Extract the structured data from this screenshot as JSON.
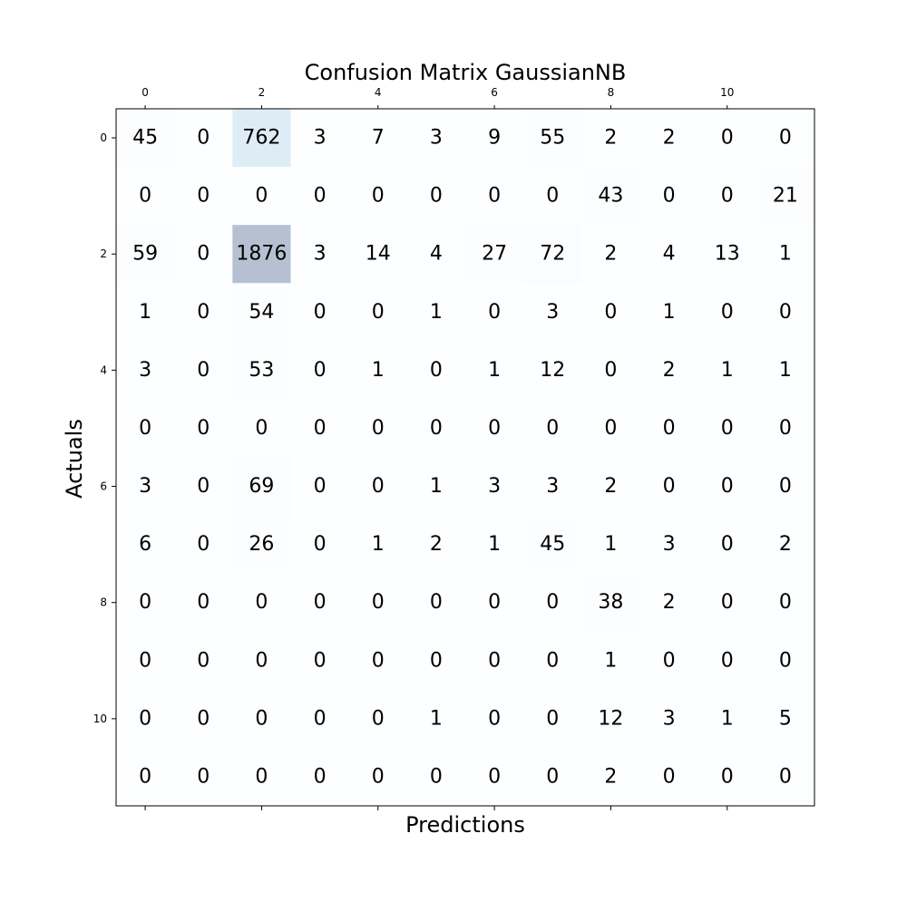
{
  "chart_data": {
    "type": "heatmap",
    "title": "Confusion Matrix GaussianNB",
    "xlabel": "Predictions",
    "ylabel": "Actuals",
    "colormap": "Blues",
    "alpha": 0.3,
    "x_tick_labels": [
      "0",
      "2",
      "4",
      "6",
      "8",
      "10"
    ],
    "x_tick_indices": [
      0,
      2,
      4,
      6,
      8,
      10
    ],
    "y_tick_labels": [
      "0",
      "2",
      "4",
      "6",
      "8",
      "10"
    ],
    "y_tick_indices": [
      0,
      2,
      4,
      6,
      8,
      10
    ],
    "matrix": [
      [
        45,
        0,
        762,
        3,
        7,
        3,
        9,
        55,
        2,
        2,
        0,
        0
      ],
      [
        0,
        0,
        0,
        0,
        0,
        0,
        0,
        0,
        43,
        0,
        0,
        21
      ],
      [
        59,
        0,
        1876,
        3,
        14,
        4,
        27,
        72,
        2,
        4,
        13,
        1
      ],
      [
        1,
        0,
        54,
        0,
        0,
        1,
        0,
        3,
        0,
        1,
        0,
        0
      ],
      [
        3,
        0,
        53,
        0,
        1,
        0,
        1,
        12,
        0,
        2,
        1,
        1
      ],
      [
        0,
        0,
        0,
        0,
        0,
        0,
        0,
        0,
        0,
        0,
        0,
        0
      ],
      [
        3,
        0,
        69,
        0,
        0,
        1,
        3,
        3,
        2,
        0,
        0,
        0
      ],
      [
        6,
        0,
        26,
        0,
        1,
        2,
        1,
        45,
        1,
        3,
        0,
        2
      ],
      [
        0,
        0,
        0,
        0,
        0,
        0,
        0,
        0,
        38,
        2,
        0,
        0
      ],
      [
        0,
        0,
        0,
        0,
        0,
        0,
        0,
        0,
        1,
        0,
        0,
        0
      ],
      [
        0,
        0,
        0,
        0,
        0,
        1,
        0,
        0,
        12,
        3,
        1,
        5
      ],
      [
        0,
        0,
        0,
        0,
        0,
        0,
        0,
        0,
        2,
        0,
        0,
        0
      ]
    ]
  }
}
